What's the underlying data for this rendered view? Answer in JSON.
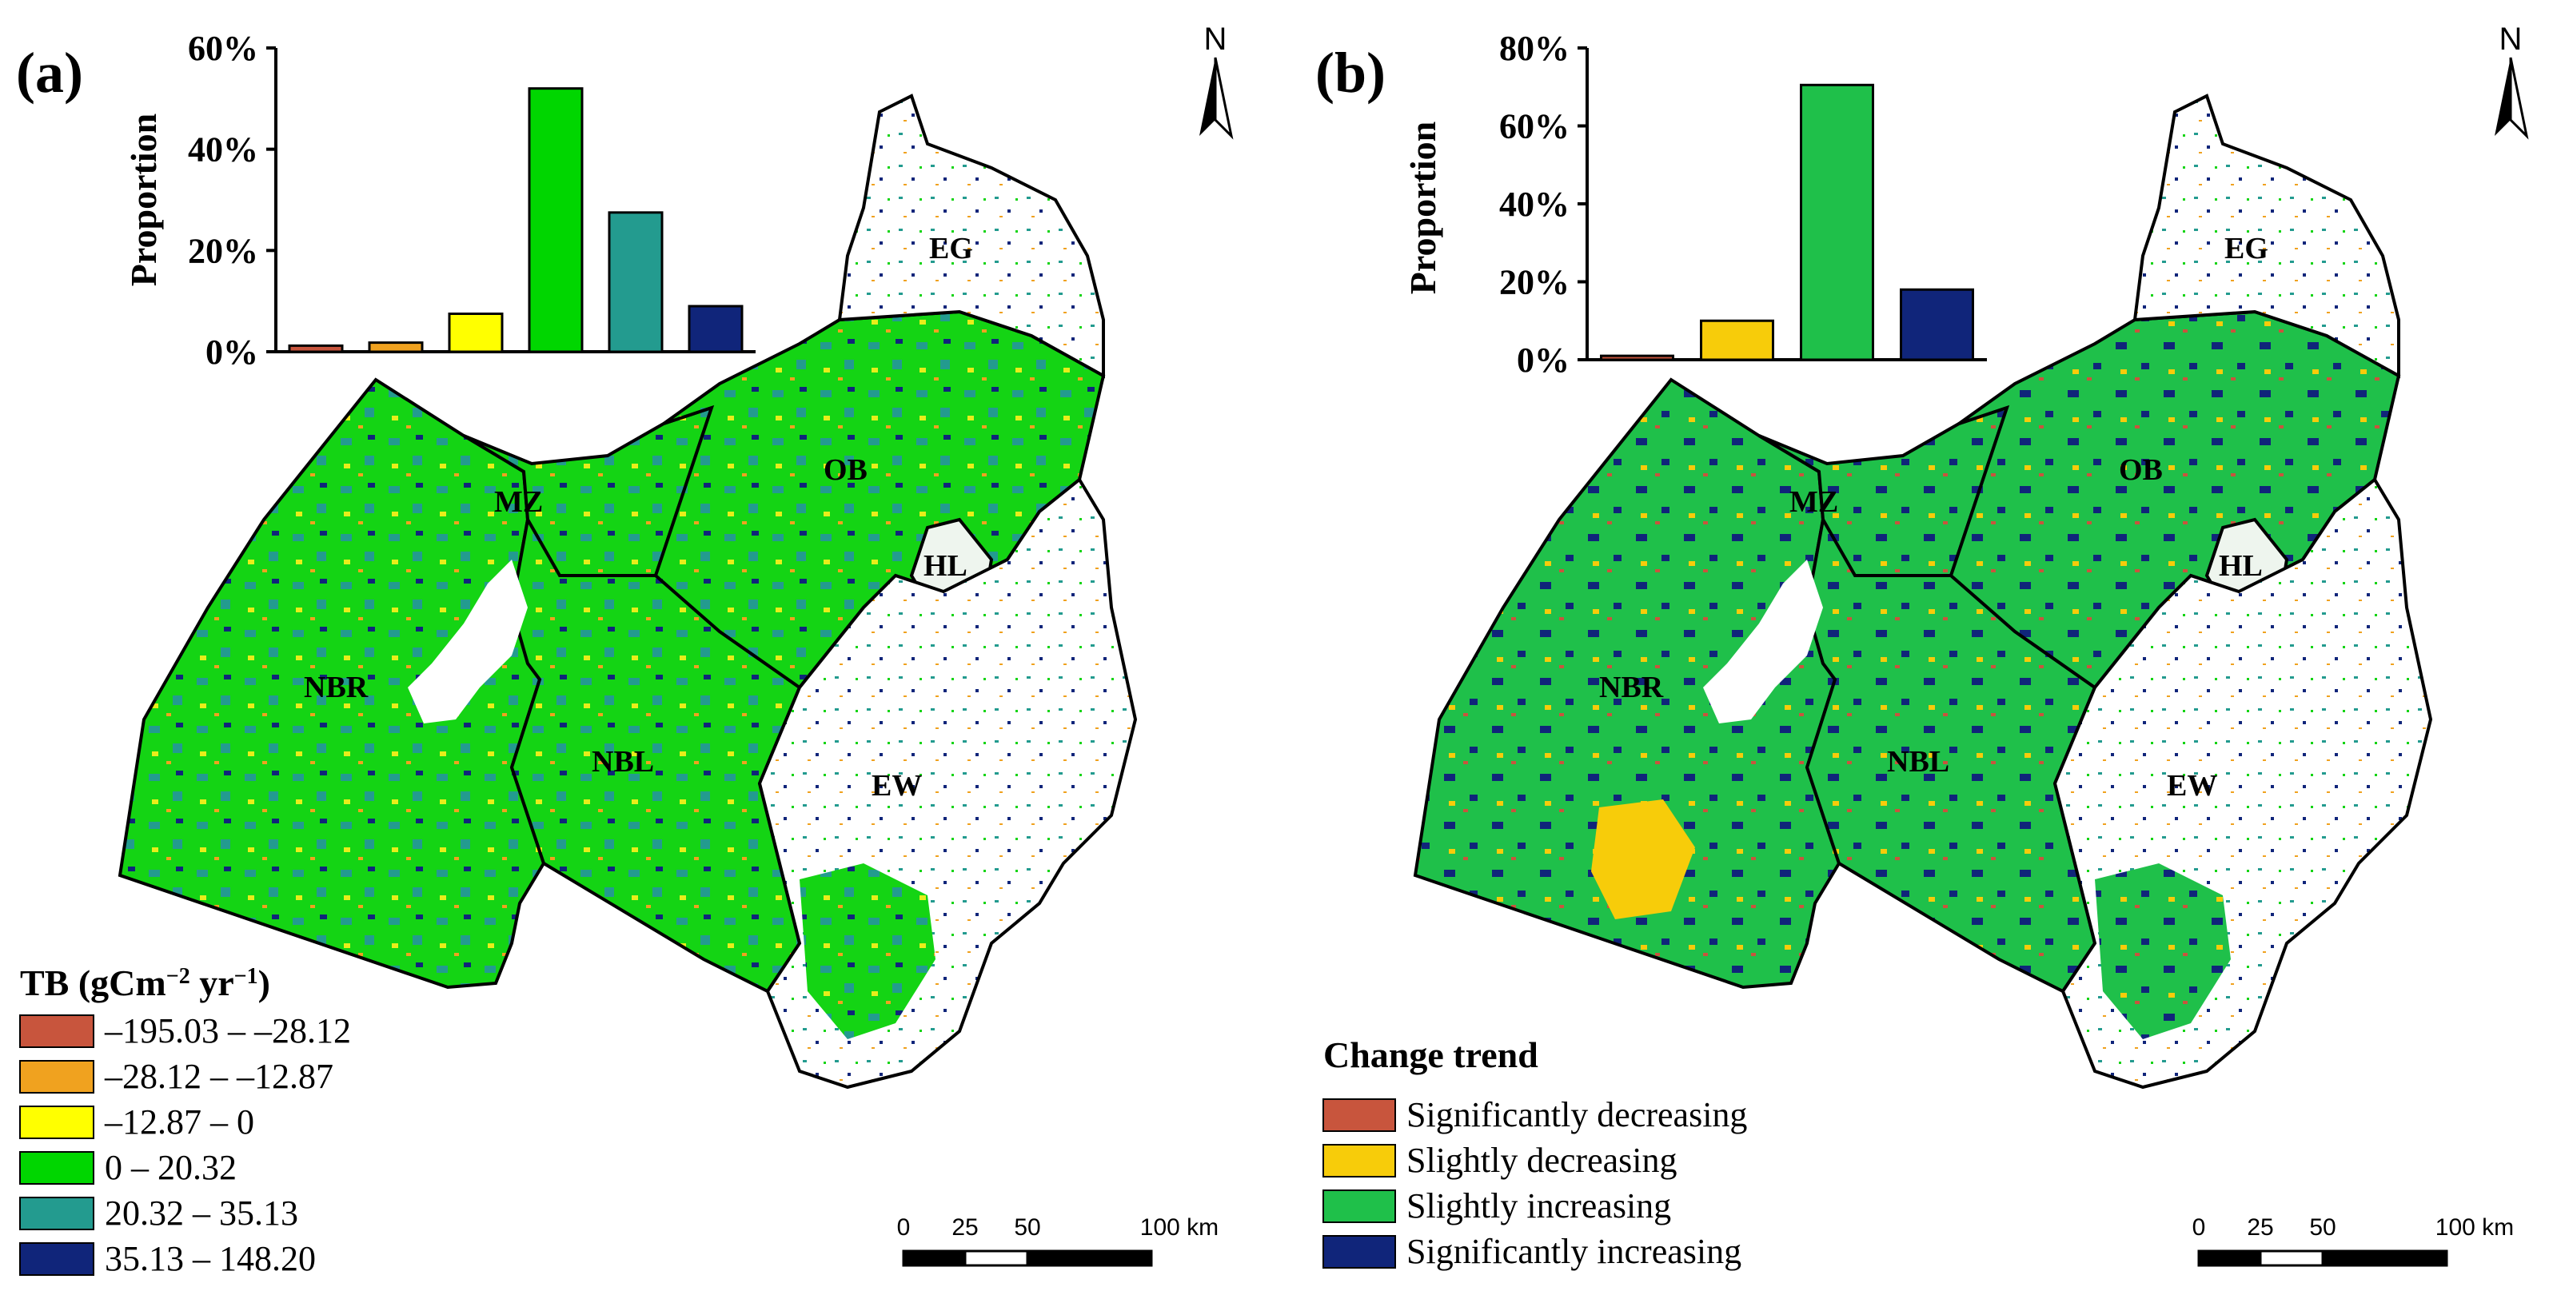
{
  "panel_a": {
    "label": "(a)",
    "regions": [
      "EG",
      "OB",
      "MZ",
      "HL",
      "NBR",
      "NBL",
      "EW"
    ],
    "legend_title_prefix": "TB (gCm",
    "legend_title_exp1": "−2",
    "legend_title_mid": " yr",
    "legend_title_exp2": "−1",
    "legend_title_suffix": ")",
    "legend_items": [
      {
        "label": "–195.03 – –28.12",
        "color": "#c8553d"
      },
      {
        "label": "–28.12 – –12.87",
        "color": "#f0a21f"
      },
      {
        "label": "–12.87 – 0",
        "color": "#ffff00"
      },
      {
        "label": "0 – 20.32",
        "color": "#00d600"
      },
      {
        "label": "20.32 – 35.13",
        "color": "#239b8f"
      },
      {
        "label": "35.13 – 148.20",
        "color": "#10257a"
      }
    ],
    "north": "N",
    "scale_numbers": [
      "0",
      "25",
      "50",
      "100 km"
    ]
  },
  "panel_b": {
    "label": "(b)",
    "regions": [
      "EG",
      "OB",
      "MZ",
      "HL",
      "NBR",
      "NBL",
      "EW"
    ],
    "legend_title": "Change trend",
    "legend_items": [
      {
        "label": "Significantly decreasing",
        "color": "#c8553d"
      },
      {
        "label": "Slightly decreasing",
        "color": "#f7cc0a"
      },
      {
        "label": "Slightly increasing",
        "color": "#1fc04a"
      },
      {
        "label": "Significantly increasing",
        "color": "#10257a"
      }
    ],
    "north": "N",
    "scale_numbers": [
      "0",
      "25",
      "50",
      "100 km"
    ]
  },
  "chart_data": [
    {
      "type": "bar",
      "panel": "(a)",
      "ylabel": "Proportion",
      "xlabel": "",
      "ylim": [
        0,
        60
      ],
      "y_ticks": [
        "0%",
        "20%",
        "40%",
        "60%"
      ],
      "categories": [
        "–195.03 – –28.12",
        "–28.12 – –12.87",
        "–12.87 – 0",
        "0 – 20.32",
        "20.32 – 35.13",
        "35.13 – 148.20"
      ],
      "values": [
        1.2,
        1.8,
        7.5,
        52,
        27.5,
        9
      ],
      "colors": [
        "#c8553d",
        "#f0a21f",
        "#ffff00",
        "#00d600",
        "#239b8f",
        "#10257a"
      ]
    },
    {
      "type": "bar",
      "panel": "(b)",
      "ylabel": "Proportion",
      "xlabel": "",
      "ylim": [
        0,
        80
      ],
      "y_ticks": [
        "0%",
        "20%",
        "40%",
        "60%",
        "80%"
      ],
      "categories": [
        "Significantly decreasing",
        "Slightly decreasing",
        "Slightly increasing",
        "Significantly increasing"
      ],
      "values": [
        1,
        10,
        70.5,
        18
      ],
      "colors": [
        "#c8553d",
        "#f7cc0a",
        "#1fc04a",
        "#10257a"
      ]
    }
  ]
}
